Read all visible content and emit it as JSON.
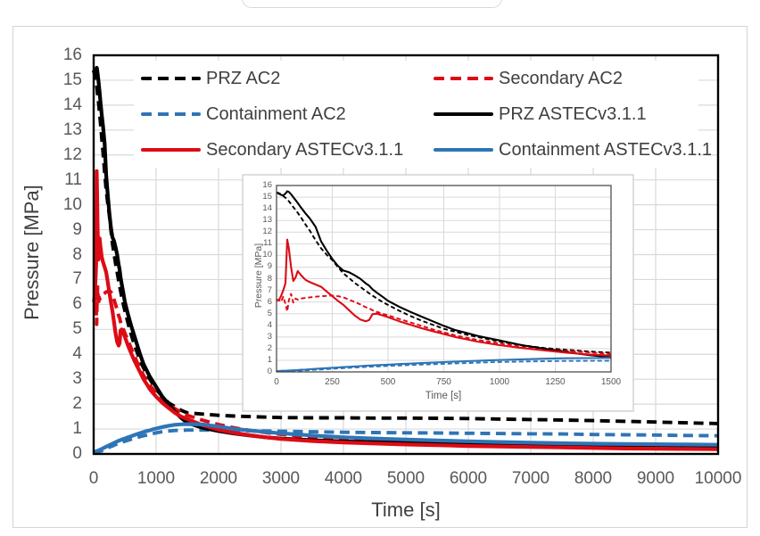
{
  "page": {
    "background": "#ffffff"
  },
  "figure": {
    "background": "#ffffff",
    "border_color": "#d4d4d4"
  },
  "chart_data": {
    "type": "line",
    "title": "",
    "main_axis": {
      "xlabel": "Time [s]",
      "ylabel": "Pressure [MPa]",
      "xlim": [
        0,
        10000
      ],
      "ylim": [
        0,
        16
      ],
      "xticks": [
        0,
        1000,
        2000,
        3000,
        4000,
        5000,
        6000,
        7000,
        8000,
        9000,
        10000
      ],
      "yticks": [
        0,
        1,
        2,
        3,
        4,
        5,
        6,
        7,
        8,
        9,
        10,
        11,
        12,
        13,
        14,
        15,
        16
      ],
      "grid": true
    },
    "inset_axis": {
      "xlabel": "Time [s]",
      "ylabel": "Pressure [MPa]",
      "xlim": [
        0,
        1500
      ],
      "ylim": [
        0,
        16
      ],
      "xticks": [
        0,
        250,
        500,
        750,
        1000,
        1250,
        1500
      ],
      "yticks": [
        0,
        1,
        2,
        3,
        4,
        5,
        6,
        7,
        8,
        9,
        10,
        11,
        12,
        13,
        14,
        15,
        16
      ],
      "grid": true
    },
    "colors": {
      "grid": "#d9d9d9",
      "frame": "#000000",
      "inset_frame": "#404040",
      "inset_border": "#c9c9c9",
      "tick_text": "#595959",
      "axis_title_text": "#404040",
      "legend_text": "#3f3f3f",
      "black": "#000000",
      "red": "#dd0b15",
      "blue": "#2e75b6"
    },
    "t": [
      0,
      10,
      20,
      30,
      40,
      48,
      55,
      65,
      75,
      85,
      95,
      110,
      130,
      150,
      175,
      200,
      225,
      250,
      275,
      300,
      325,
      350,
      375,
      400,
      415,
      430,
      450,
      475,
      500,
      550,
      600,
      650,
      700,
      750,
      800,
      850,
      900,
      950,
      1000,
      1100,
      1200,
      1300,
      1400,
      1500,
      1750,
      2000,
      2250,
      2500,
      2750,
      3000,
      3500,
      4000,
      4500,
      5000,
      5500,
      6000,
      6500,
      7000,
      7500,
      8000,
      8500,
      9000,
      9500,
      10000
    ],
    "series": [
      {
        "name": "PRZ AC2",
        "color": "#000000",
        "dashed": true,
        "p": [
          15.4,
          15.35,
          15.25,
          15.1,
          14.95,
          14.8,
          14.65,
          14.4,
          14.15,
          13.9,
          13.65,
          13.25,
          12.65,
          12.1,
          11.3,
          10.6,
          10.05,
          9.6,
          9.0,
          8.45,
          8.05,
          7.65,
          7.3,
          6.95,
          6.75,
          6.55,
          6.3,
          6.0,
          5.75,
          5.25,
          4.8,
          4.4,
          4.05,
          3.7,
          3.45,
          3.2,
          3.0,
          2.8,
          2.6,
          2.3,
          2.05,
          1.9,
          1.75,
          1.65,
          1.6,
          1.55,
          1.52,
          1.5,
          1.48,
          1.46,
          1.45,
          1.45,
          1.44,
          1.44,
          1.43,
          1.42,
          1.4,
          1.38,
          1.36,
          1.34,
          1.31,
          1.28,
          1.25,
          1.22
        ]
      },
      {
        "name": "Containment AC2",
        "color": "#2e75b6",
        "dashed": true,
        "p": [
          0.05,
          0.05,
          0.06,
          0.06,
          0.07,
          0.07,
          0.08,
          0.08,
          0.09,
          0.1,
          0.1,
          0.11,
          0.13,
          0.15,
          0.18,
          0.21,
          0.24,
          0.27,
          0.3,
          0.32,
          0.35,
          0.38,
          0.4,
          0.43,
          0.44,
          0.45,
          0.47,
          0.49,
          0.51,
          0.55,
          0.59,
          0.63,
          0.66,
          0.7,
          0.73,
          0.76,
          0.79,
          0.82,
          0.85,
          0.89,
          0.92,
          0.94,
          0.95,
          0.96,
          0.96,
          0.95,
          0.94,
          0.93,
          0.92,
          0.91,
          0.89,
          0.87,
          0.86,
          0.85,
          0.84,
          0.83,
          0.82,
          0.81,
          0.8,
          0.78,
          0.77,
          0.76,
          0.74,
          0.73
        ]
      },
      {
        "name": "Secondary ASTECv3.1.1",
        "color": "#dd0b15",
        "dashed": false,
        "p": [
          6.2,
          6.15,
          6.5,
          7.0,
          7.6,
          11.35,
          10.6,
          9.0,
          7.8,
          8.1,
          8.65,
          8.3,
          7.9,
          7.7,
          7.5,
          7.3,
          6.9,
          6.5,
          6.1,
          5.75,
          5.3,
          4.85,
          4.5,
          4.35,
          4.45,
          4.95,
          5.0,
          4.85,
          4.7,
          4.35,
          4.05,
          3.75,
          3.5,
          3.25,
          3.0,
          2.8,
          2.6,
          2.45,
          2.3,
          2.05,
          1.85,
          1.65,
          1.5,
          1.4,
          1.15,
          0.97,
          0.85,
          0.75,
          0.67,
          0.6,
          0.52,
          0.46,
          0.42,
          0.38,
          0.35,
          0.32,
          0.3,
          0.28,
          0.26,
          0.24,
          0.22,
          0.21,
          0.2,
          0.19
        ]
      },
      {
        "name": "Secondary AC2",
        "color": "#dd0b15",
        "dashed": true,
        "p": [
          6.1,
          6.2,
          6.0,
          6.45,
          5.85,
          5.2,
          6.15,
          6.7,
          5.95,
          6.3,
          6.2,
          6.3,
          6.35,
          6.4,
          6.45,
          6.5,
          6.52,
          6.55,
          6.5,
          6.4,
          6.2,
          6.0,
          5.8,
          5.55,
          5.45,
          5.3,
          5.15,
          5.0,
          4.85,
          4.55,
          4.25,
          3.95,
          3.65,
          3.4,
          3.15,
          2.95,
          2.75,
          2.6,
          2.45,
          2.2,
          2.0,
          1.82,
          1.68,
          1.55,
          1.35,
          1.18,
          1.05,
          0.95,
          0.86,
          0.79,
          0.67,
          0.58,
          0.52,
          0.47,
          0.43,
          0.4,
          0.37,
          0.34,
          0.32,
          0.3,
          0.28,
          0.26,
          0.24,
          0.23
        ]
      },
      {
        "name": "PRZ ASTECv3.1.1",
        "color": "#000000",
        "dashed": false,
        "p": [
          15.4,
          15.3,
          15.2,
          15.15,
          15.3,
          15.5,
          15.45,
          15.25,
          15.0,
          14.75,
          14.5,
          14.1,
          13.6,
          13.15,
          12.45,
          11.2,
          10.4,
          9.7,
          9.1,
          8.7,
          8.55,
          8.3,
          8.0,
          7.6,
          7.4,
          7.1,
          6.8,
          6.45,
          6.1,
          5.6,
          5.15,
          4.75,
          4.35,
          3.95,
          3.6,
          3.35,
          3.1,
          2.9,
          2.7,
          2.3,
          2.0,
          1.7,
          1.45,
          1.25,
          1.05,
          0.92,
          0.82,
          0.74,
          0.67,
          0.62,
          0.55,
          0.5,
          0.47,
          0.45,
          0.43,
          0.42,
          0.4,
          0.39,
          0.38,
          0.37,
          0.36,
          0.35,
          0.34,
          0.33
        ]
      },
      {
        "name": "Containment ASTECv3.1.1",
        "color": "#2e75b6",
        "dashed": false,
        "p": [
          0.08,
          0.08,
          0.09,
          0.1,
          0.1,
          0.11,
          0.12,
          0.13,
          0.14,
          0.15,
          0.16,
          0.18,
          0.2,
          0.23,
          0.26,
          0.29,
          0.32,
          0.35,
          0.38,
          0.41,
          0.44,
          0.47,
          0.5,
          0.53,
          0.54,
          0.56,
          0.58,
          0.6,
          0.62,
          0.67,
          0.71,
          0.76,
          0.8,
          0.84,
          0.88,
          0.92,
          0.95,
          0.99,
          1.02,
          1.08,
          1.13,
          1.17,
          1.19,
          1.2,
          1.18,
          1.1,
          1.01,
          0.94,
          0.88,
          0.83,
          0.74,
          0.67,
          0.62,
          0.58,
          0.54,
          0.51,
          0.48,
          0.45,
          0.43,
          0.41,
          0.4,
          0.39,
          0.38,
          0.37
        ]
      }
    ],
    "draw_order": [
      0,
      3,
      1,
      4,
      2,
      5
    ],
    "legend": {
      "entries": [
        {
          "label": "PRZ AC2",
          "series": 0
        },
        {
          "label": "Secondary AC2",
          "series": 3
        },
        {
          "label": "Containment AC2",
          "series": 1
        },
        {
          "label": "PRZ ASTECv3.1.1",
          "series": 4
        },
        {
          "label": "Secondary ASTECv3.1.1",
          "series": 2
        },
        {
          "label": "Containment ASTECv3.1.1",
          "series": 5
        }
      ]
    }
  }
}
